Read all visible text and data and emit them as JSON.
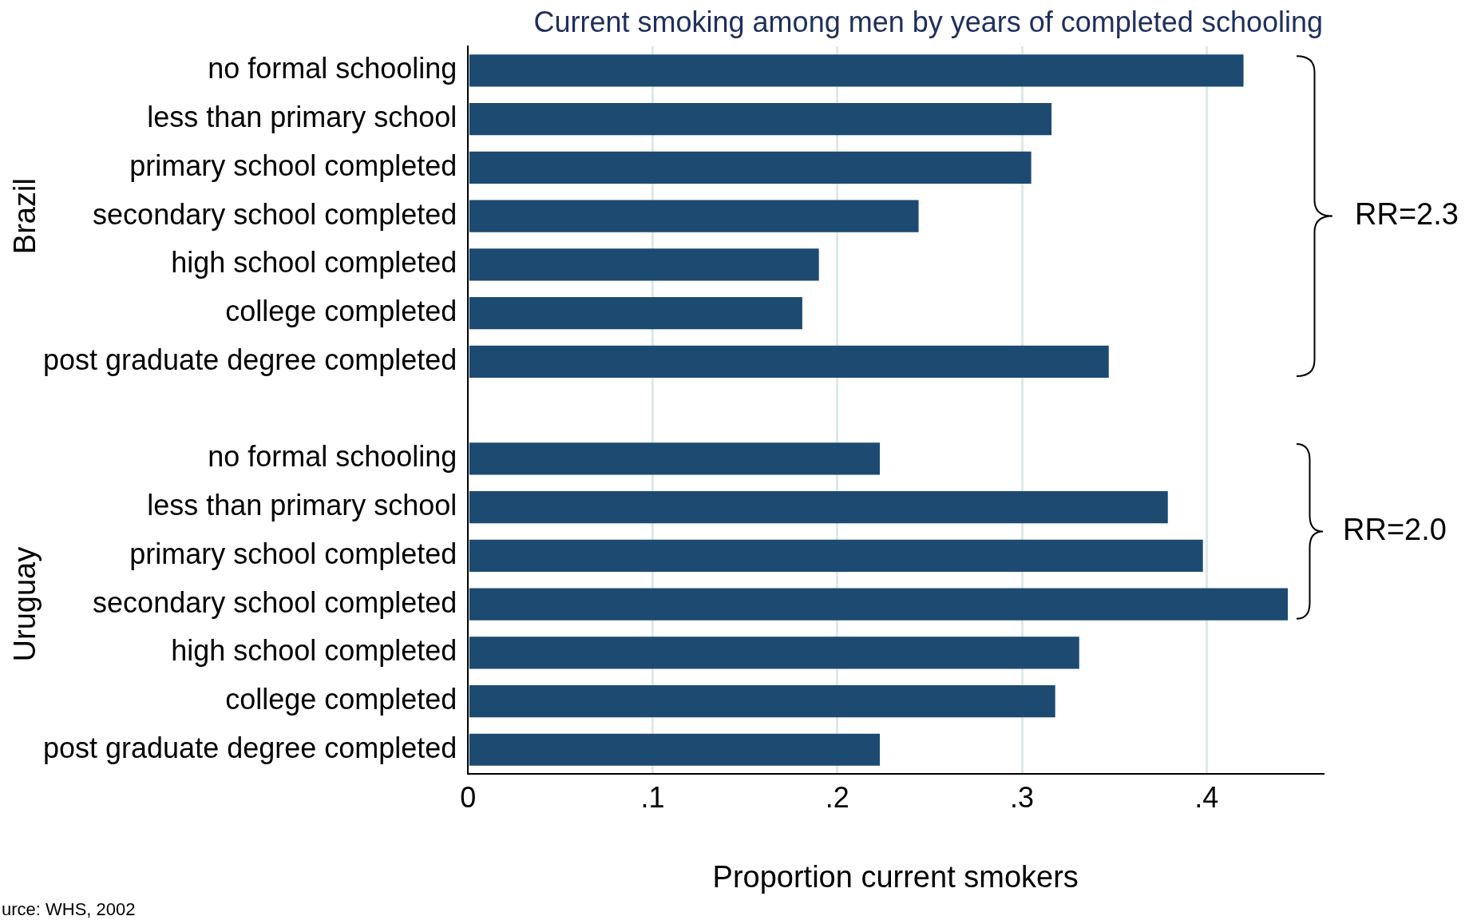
{
  "chart_data": {
    "type": "bar",
    "orientation": "horizontal",
    "title": "Current smoking among men by years of completed schooling",
    "xlabel": "Proportion current smokers",
    "categories": [
      "no formal schooling",
      "less than primary school",
      "primary school completed",
      "secondary school completed",
      "high school completed",
      "college completed",
      "post graduate degree completed",
      null,
      "no formal schooling",
      "less than primary school",
      "primary school completed",
      "secondary school completed",
      "high school completed",
      "college completed",
      "post graduate degree completed"
    ],
    "values": [
      0.42,
      0.316,
      0.305,
      0.244,
      0.19,
      0.181,
      0.347,
      null,
      0.223,
      0.379,
      0.398,
      0.444,
      0.331,
      0.318,
      0.223
    ],
    "color": "#1d4a70",
    "xlim": [
      0,
      0.463
    ],
    "xticks": [
      {
        "value": 0,
        "label": "0"
      },
      {
        "value": 0.1,
        "label": ".1"
      },
      {
        "value": 0.2,
        "label": ".2"
      },
      {
        "value": 0.3,
        "label": ".3"
      },
      {
        "value": 0.4,
        "label": ".4"
      }
    ],
    "grid": "x",
    "legend": false,
    "annotations": [
      "Brazil",
      "Uruguay",
      "RR=2.3",
      "RR=2.0",
      "urce: WHS, 2002"
    ]
  }
}
